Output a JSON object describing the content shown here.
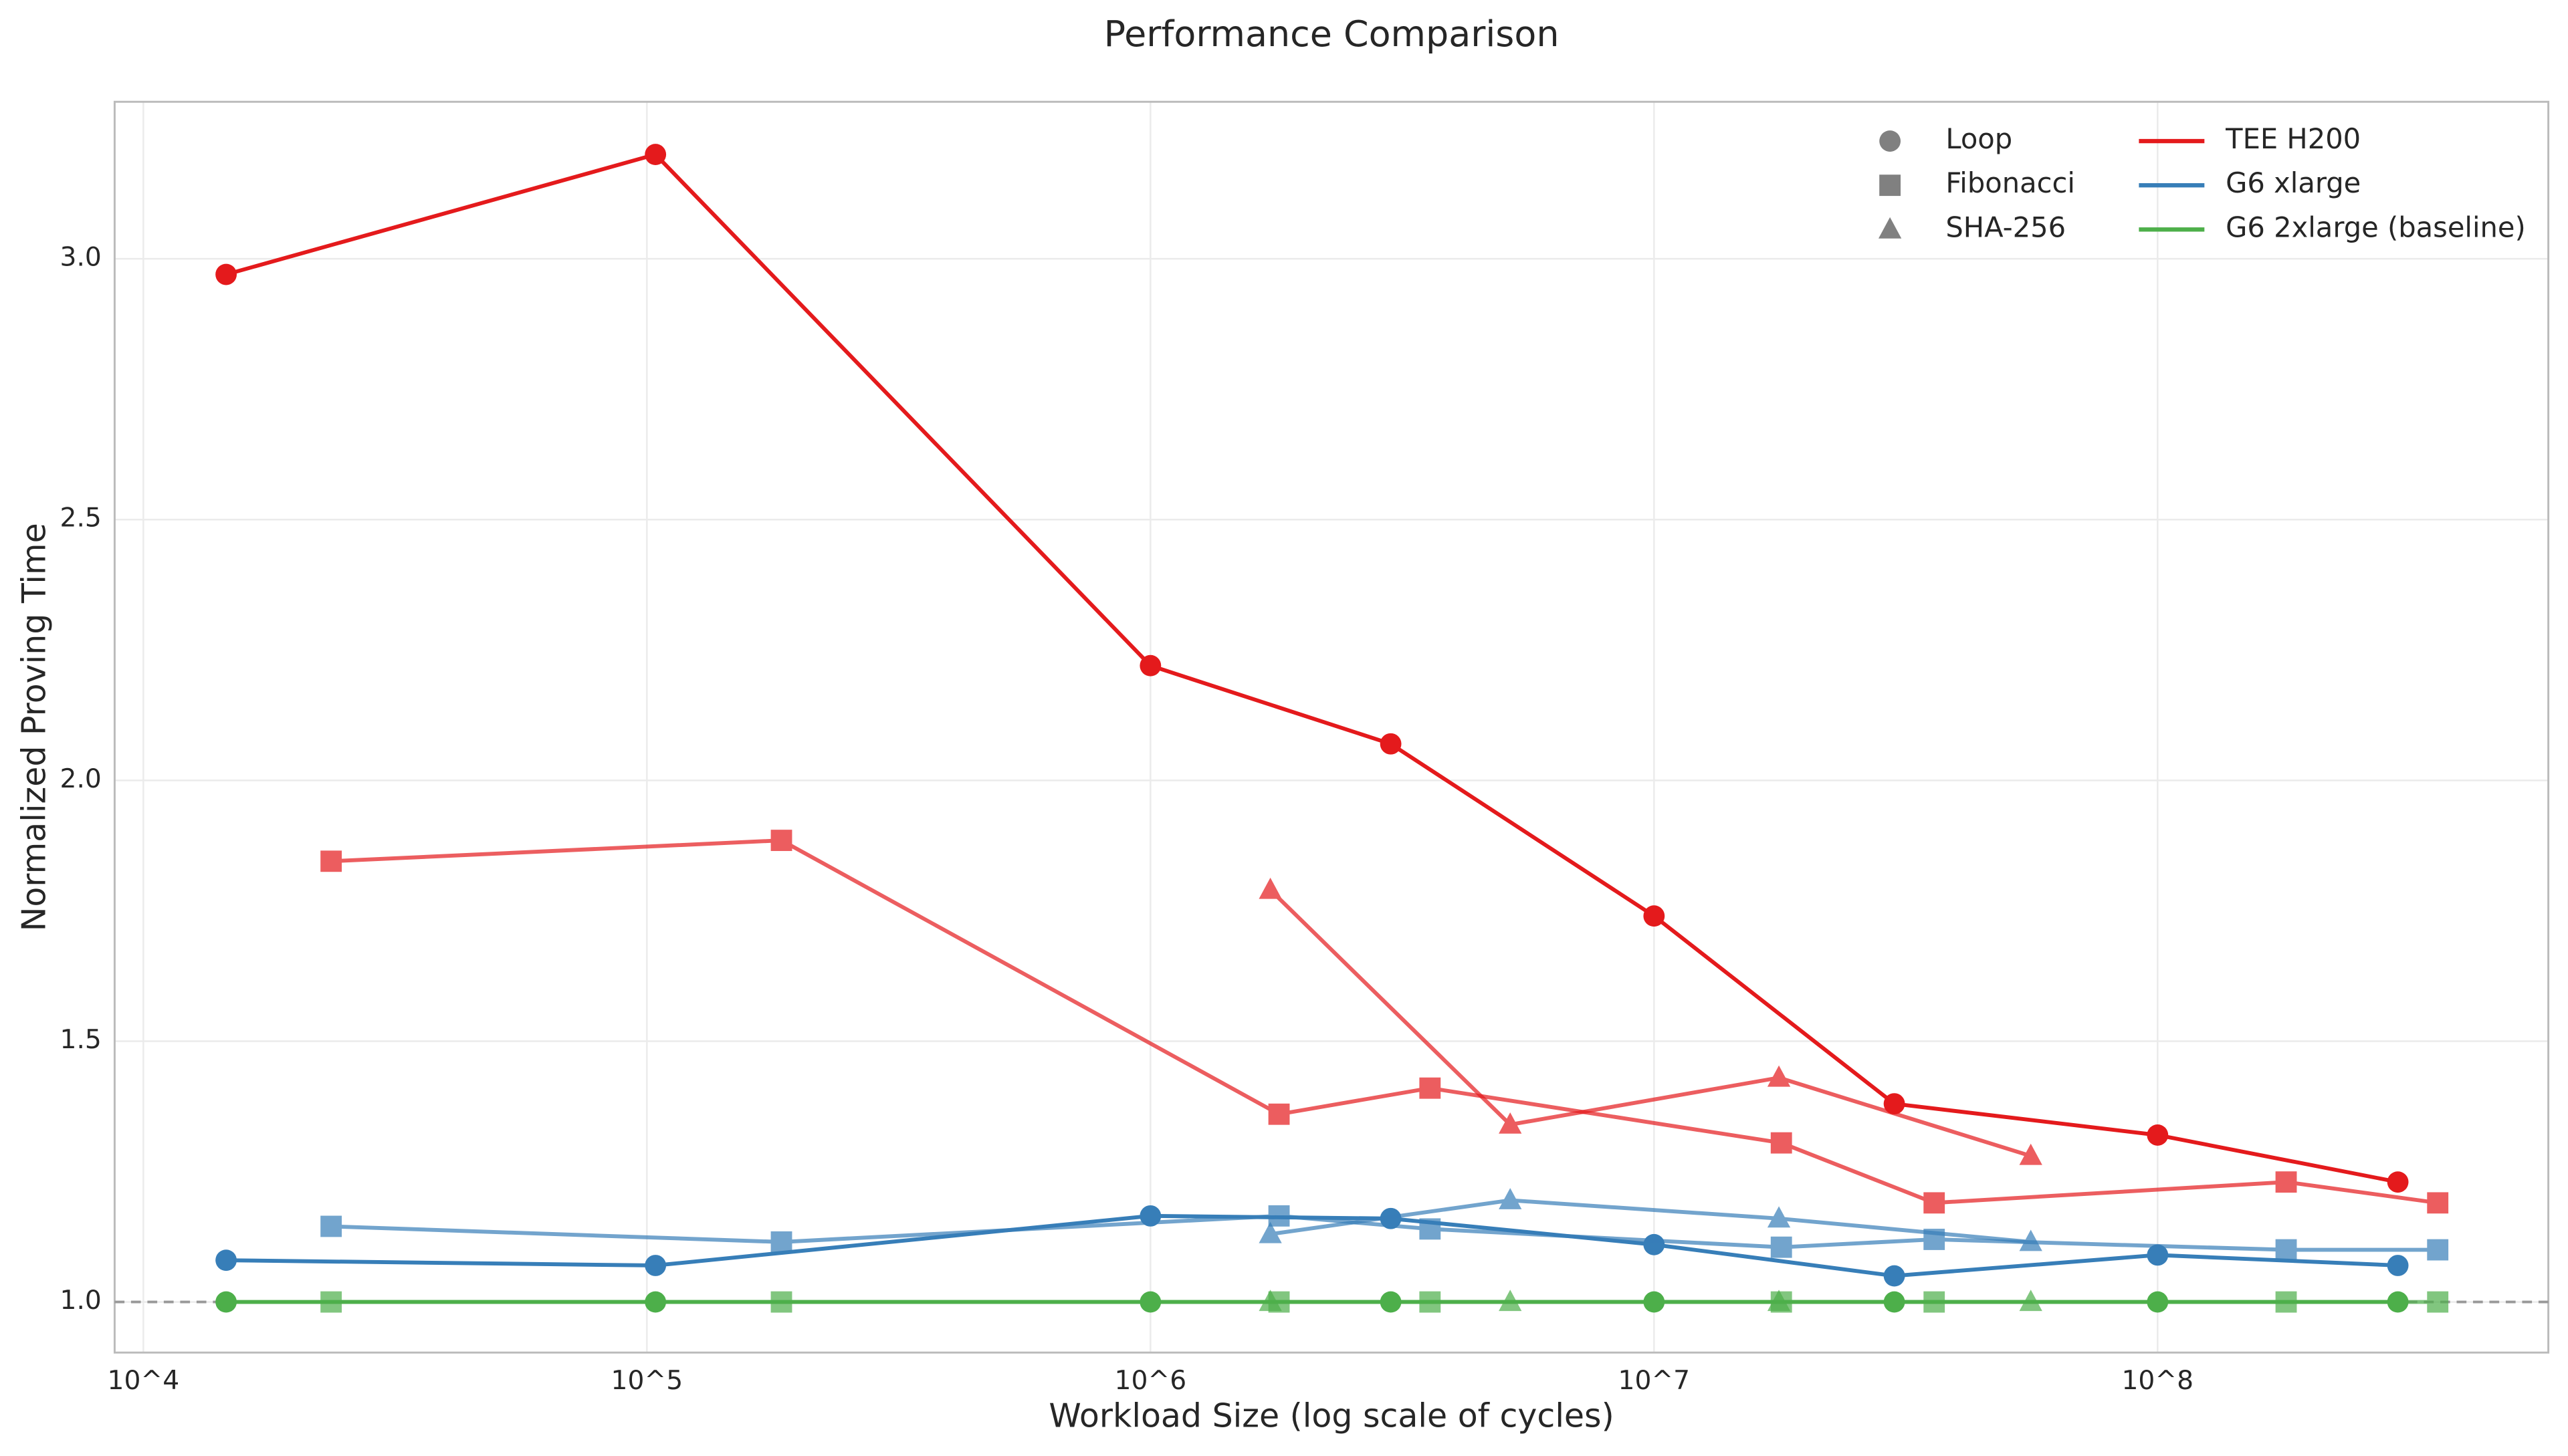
{
  "chart_data": {
    "type": "line",
    "title": "Performance Comparison",
    "x_label": "Workload Size (log scale of cycles)",
    "y_label": "Normalized Proving Time",
    "x_log": true,
    "grid": true,
    "xlim": [
      8770,
      597000000
    ],
    "ylim": [
      0.903,
      3.301
    ],
    "xticks": [
      {
        "value": 10000,
        "label": "10^4"
      },
      {
        "value": 100000,
        "label": "10^5"
      },
      {
        "value": 1000000,
        "label": "10^6"
      },
      {
        "value": 10000000,
        "label": "10^7"
      },
      {
        "value": 100000000,
        "label": "10^8"
      }
    ],
    "yticks": [
      {
        "value": 1,
        "label": "1.0"
      },
      1.5,
      {
        "value": 2,
        "label": "2.0"
      },
      2.5,
      {
        "value": 3,
        "label": "3.0"
      }
    ],
    "reference_line": 1,
    "legend": "upper right",
    "platforms": [
      {
        "name": "TEE H200",
        "color": "#e41a1c"
      },
      {
        "name": "G6 xlarge",
        "color": "#377eb8"
      },
      {
        "name": "G6 2xlarge (baseline)",
        "color": "#4daf4a"
      }
    ],
    "workloads": [
      {
        "name": "Loop",
        "marker": "circle",
        "alpha": 1,
        "x": [
          14600,
          104000,
          1000000,
          3000000,
          10000000,
          30000000,
          100000000,
          300000000
        ],
        "series": [
          {
            "values": [
              2.97,
              3.2,
              2.22,
              2.07,
              1.74,
              1.38,
              1.32,
              1.23
            ]
          },
          {
            "values": [
              1.08,
              1.07,
              1.165,
              1.16,
              1.11,
              1.05,
              1.09,
              1.07
            ]
          },
          {
            "values": [
              1,
              1,
              1,
              1,
              1,
              1,
              1,
              1
            ]
          }
        ]
      },
      {
        "name": "Fibonacci",
        "marker": "square",
        "alpha": 0.7,
        "x": [
          23600,
          185000,
          1800000,
          3590000,
          17900000,
          36000000,
          180000000,
          360000000
        ],
        "series": [
          {
            "values": [
              1.845,
              1.885,
              1.36,
              1.41,
              1.305,
              1.19,
              1.23,
              1.19
            ]
          },
          {
            "values": [
              1.145,
              1.115,
              1.165,
              1.14,
              1.105,
              1.12,
              1.1,
              1.1
            ]
          },
          {
            "values": [
              1,
              1,
              1,
              1,
              1,
              1,
              1,
              1
            ]
          }
        ]
      },
      {
        "name": "SHA-256",
        "marker": "triangle",
        "alpha": 0.7,
        "x": [
          1730000,
          5180000,
          17700000,
          56000000
        ],
        "series": [
          {
            "values": [
              1.79,
              1.34,
              1.43,
              1.28
            ]
          },
          {
            "values": [
              1.13,
              1.195,
              1.16,
              1.115
            ]
          },
          {
            "values": [
              1,
              1,
              1,
              1
            ]
          }
        ]
      }
    ]
  }
}
